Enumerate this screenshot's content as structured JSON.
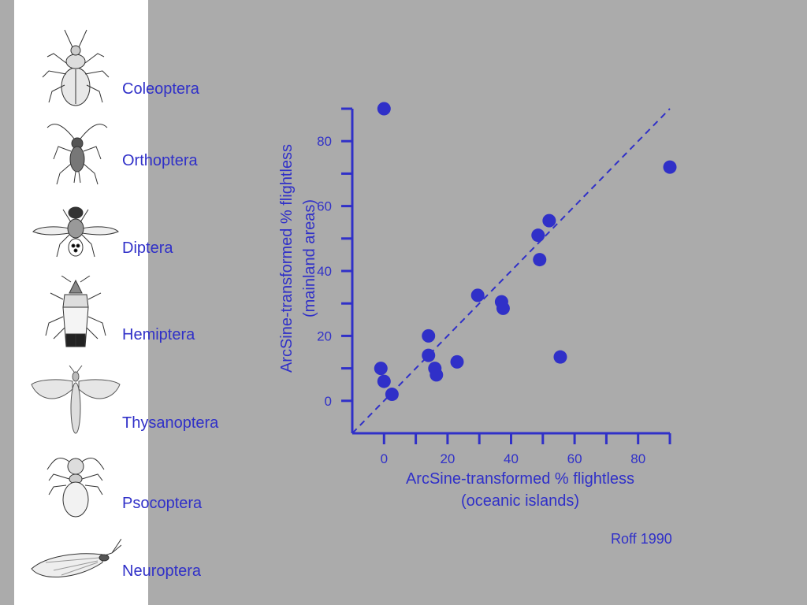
{
  "orders": [
    {
      "label": "Coleoptera",
      "icon": "beetle-icon"
    },
    {
      "label": "Orthoptera",
      "icon": "cricket-icon"
    },
    {
      "label": "Diptera",
      "icon": "fly-icon"
    },
    {
      "label": "Hemiptera",
      "icon": "true-bug-icon"
    },
    {
      "label": "Thysanoptera",
      "icon": "thrips-icon"
    },
    {
      "label": "Psocoptera",
      "icon": "booklouse-icon"
    },
    {
      "label": "Neuroptera",
      "icon": "lacewing-icon"
    }
  ],
  "source_note": "Roff 1990",
  "colors": {
    "accent": "#3030c8",
    "background": "#ababab",
    "panel": "#ffffff"
  },
  "chart_data": {
    "type": "scatter",
    "title": "",
    "xlabel_lines": [
      "ArcSine-transformed % flightless",
      "(oceanic islands)"
    ],
    "ylabel_lines": [
      "ArcSine-transformed % flightless",
      "(mainland areas)"
    ],
    "xlim": [
      -10,
      90
    ],
    "ylim": [
      -10,
      90
    ],
    "x_ticks": [
      0,
      20,
      40,
      60,
      80
    ],
    "y_ticks": [
      0,
      20,
      40,
      60,
      80
    ],
    "grid": false,
    "reference_line": {
      "type": "dashed",
      "from": [
        -10,
        -10
      ],
      "to": [
        90,
        90
      ]
    },
    "points": [
      {
        "x": 0,
        "y": 90
      },
      {
        "x": -1,
        "y": 10
      },
      {
        "x": 0,
        "y": 6
      },
      {
        "x": 2.5,
        "y": 2
      },
      {
        "x": 14,
        "y": 20
      },
      {
        "x": 14,
        "y": 14
      },
      {
        "x": 16,
        "y": 10
      },
      {
        "x": 16.5,
        "y": 8
      },
      {
        "x": 23,
        "y": 12
      },
      {
        "x": 29.5,
        "y": 32.5
      },
      {
        "x": 37,
        "y": 30.5
      },
      {
        "x": 37.5,
        "y": 28.5
      },
      {
        "x": 48.5,
        "y": 51
      },
      {
        "x": 49,
        "y": 43.5
      },
      {
        "x": 52,
        "y": 55.5
      },
      {
        "x": 55.5,
        "y": 13.5
      },
      {
        "x": 90,
        "y": 72
      }
    ]
  }
}
